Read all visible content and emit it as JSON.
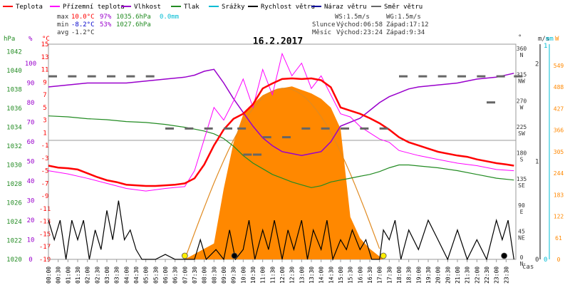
{
  "chart_data": {
    "type": "line",
    "title": "16.2.2017",
    "legend": [
      {
        "name": "Teplota",
        "color": "#ff0000"
      },
      {
        "name": "Přízemní teplota",
        "color": "#ff00ff"
      },
      {
        "name": "Vlhkost",
        "color": "#9900cc"
      },
      {
        "name": "Tlak",
        "color": "#228b22"
      },
      {
        "name": "Srážky",
        "color": "#00bcd4"
      },
      {
        "name": "Rychlost větru",
        "color": "#000000"
      },
      {
        "name": "Náraz větru",
        "color": "#000099"
      },
      {
        "name": "Směr větru",
        "color": "#666666"
      }
    ],
    "stats": {
      "max": {
        "label": "max",
        "temp": "10.0°C",
        "hum": "97%",
        "press": "1035.6hPa",
        "rain": "0.0mm"
      },
      "min": {
        "label": "min",
        "temp": "-8.2°C",
        "hum": "53%",
        "press": "1027.6hPa"
      },
      "avg": {
        "label": "avg",
        "temp": "-1.2°C"
      }
    },
    "wind_info": {
      "ws": "WS:1.5m/s",
      "wg": "WG:1.5m/s"
    },
    "sun": {
      "label": "Slunce",
      "rise": "Východ:06:58",
      "set": "Západ:17:12"
    },
    "moon": {
      "label": "Měsíc",
      "rise": "Východ:23:24",
      "set": "Západ:9:34"
    },
    "axes": {
      "hpa": {
        "title": "hPa",
        "ticks": [
          "1042",
          "1040",
          "1038",
          "1036",
          "1034",
          "1032",
          "1030",
          "1028",
          "1026",
          "1024",
          "1022",
          "1020"
        ],
        "color": "#228b22"
      },
      "pct": {
        "title": "%",
        "ticks": [
          "100",
          "90",
          "80",
          "70",
          "60",
          "50",
          "40",
          "30",
          "20",
          "10",
          "0"
        ],
        "color": "#9900cc"
      },
      "degc": {
        "title": "°C",
        "ticks": [
          "15",
          "13",
          "11",
          "9",
          "7",
          "5",
          "3",
          "1",
          "-1",
          "-3",
          "-5",
          "-7",
          "-9",
          "-11",
          "-13",
          "-15",
          "-17",
          "-19"
        ],
        "color": "#ff0000"
      },
      "deg": {
        "title": "°",
        "ticks": [
          {
            "v": "360",
            "d": "N"
          },
          {
            "v": "315",
            "d": "NW"
          },
          {
            "v": "270",
            "d": "W"
          },
          {
            "v": "225",
            "d": "SW"
          },
          {
            "v": "180",
            "d": "S"
          },
          {
            "v": "135",
            "d": "SE"
          },
          {
            "v": "90",
            "d": "E"
          },
          {
            "v": "45",
            "d": "NE"
          },
          {
            "v": "0",
            "d": "N"
          }
        ]
      },
      "ms": {
        "title": "m/s",
        "ticks": [
          "2",
          "1",
          "0"
        ]
      },
      "mm": {
        "title": "mm",
        "ticks": [
          "1",
          "0"
        ],
        "color": "#00bcd4"
      },
      "wm2": {
        "title": "W",
        "ticks": [
          "549",
          "488",
          "427",
          "366",
          "305",
          "244",
          "183",
          "122",
          "61",
          "0"
        ],
        "color": "#ff8800"
      },
      "x_label": "čas",
      "x_ticks": [
        "00:00",
        "00:30",
        "01:00",
        "01:30",
        "02:00",
        "02:30",
        "03:00",
        "03:30",
        "04:00",
        "04:30",
        "05:00",
        "05:30",
        "06:00",
        "06:30",
        "07:00",
        "07:30",
        "08:00",
        "08:30",
        "09:00",
        "09:30",
        "10:00",
        "10:30",
        "11:00",
        "11:30",
        "12:00",
        "12:30",
        "13:00",
        "13:30",
        "14:00",
        "14:30",
        "15:00",
        "15:30",
        "16:00",
        "16:30",
        "17:00",
        "17:30",
        "18:00",
        "18:30",
        "19:00",
        "19:30",
        "20:00",
        "20:30",
        "21:00",
        "21:30",
        "22:00",
        "22:30",
        "23:00",
        "23:30"
      ]
    },
    "series_data": {
      "temperature_c": [
        [
          0,
          -4.2
        ],
        [
          0.5,
          -4.5
        ],
        [
          1,
          -4.6
        ],
        [
          1.5,
          -4.8
        ],
        [
          2,
          -5.4
        ],
        [
          2.5,
          -6
        ],
        [
          3,
          -6.5
        ],
        [
          3.5,
          -6.8
        ],
        [
          4,
          -7.2
        ],
        [
          4.5,
          -7.3
        ],
        [
          5,
          -7.4
        ],
        [
          5.5,
          -7.4
        ],
        [
          6,
          -7.3
        ],
        [
          6.5,
          -7.2
        ],
        [
          7,
          -7.0
        ],
        [
          7.5,
          -6.2
        ],
        [
          8,
          -4
        ],
        [
          8.5,
          -1
        ],
        [
          9,
          1.5
        ],
        [
          9.5,
          3.2
        ],
        [
          10,
          4
        ],
        [
          10.5,
          5.5
        ],
        [
          11,
          8
        ],
        [
          11.5,
          8.8
        ],
        [
          12,
          9.5
        ],
        [
          12.5,
          9.6
        ],
        [
          13,
          9.5
        ],
        [
          13.5,
          9.6
        ],
        [
          14,
          9.3
        ],
        [
          14.5,
          8.2
        ],
        [
          15,
          5
        ],
        [
          15.5,
          4.5
        ],
        [
          16,
          4
        ],
        [
          16.5,
          3.3
        ],
        [
          17,
          2.5
        ],
        [
          17.5,
          1.5
        ],
        [
          18,
          0.3
        ],
        [
          18.5,
          -0.5
        ],
        [
          19,
          -1
        ],
        [
          19.5,
          -1.5
        ],
        [
          20,
          -2
        ],
        [
          20.5,
          -2.3
        ],
        [
          21,
          -2.6
        ],
        [
          21.5,
          -2.8
        ],
        [
          22,
          -3.2
        ],
        [
          22.5,
          -3.5
        ],
        [
          23,
          -3.8
        ],
        [
          23.5,
          -4
        ],
        [
          23.9,
          -4.2
        ]
      ],
      "ground_temp_c": [
        [
          0,
          -5
        ],
        [
          1,
          -5.5
        ],
        [
          2,
          -6.2
        ],
        [
          3,
          -7
        ],
        [
          4,
          -7.8
        ],
        [
          5,
          -8.2
        ],
        [
          6,
          -7.8
        ],
        [
          7,
          -7.5
        ],
        [
          7.5,
          -5
        ],
        [
          8,
          0
        ],
        [
          8.5,
          5
        ],
        [
          9,
          3
        ],
        [
          9.5,
          6
        ],
        [
          10,
          9.5
        ],
        [
          10.5,
          5
        ],
        [
          11,
          11
        ],
        [
          11.5,
          7
        ],
        [
          12,
          13.5
        ],
        [
          12.5,
          10
        ],
        [
          13,
          12
        ],
        [
          13.5,
          8
        ],
        [
          14,
          10
        ],
        [
          14.5,
          7
        ],
        [
          15,
          4
        ],
        [
          15.5,
          3.5
        ],
        [
          16,
          2
        ],
        [
          16.5,
          1
        ],
        [
          17,
          0
        ],
        [
          17.5,
          -0.5
        ],
        [
          18,
          -1.8
        ],
        [
          18.5,
          -2.2
        ],
        [
          19,
          -2.6
        ],
        [
          20,
          -3.2
        ],
        [
          21,
          -3.8
        ],
        [
          22,
          -4.2
        ],
        [
          23,
          -4.8
        ],
        [
          23.9,
          -5
        ]
      ],
      "humidity_pct": [
        [
          0,
          88
        ],
        [
          1,
          89
        ],
        [
          2,
          90
        ],
        [
          3,
          90
        ],
        [
          4,
          90
        ],
        [
          5,
          91
        ],
        [
          6,
          92
        ],
        [
          7,
          93
        ],
        [
          7.5,
          94
        ],
        [
          8,
          96
        ],
        [
          8.5,
          97
        ],
        [
          9,
          90
        ],
        [
          9.5,
          82
        ],
        [
          10,
          75
        ],
        [
          10.5,
          68
        ],
        [
          11,
          62
        ],
        [
          11.5,
          58
        ],
        [
          12,
          55
        ],
        [
          12.5,
          54
        ],
        [
          13,
          53
        ],
        [
          13.5,
          54
        ],
        [
          14,
          55
        ],
        [
          14.5,
          60
        ],
        [
          15,
          68
        ],
        [
          16,
          72
        ],
        [
          16.5,
          76
        ],
        [
          17,
          80
        ],
        [
          17.5,
          83
        ],
        [
          18,
          85
        ],
        [
          18.5,
          87
        ],
        [
          19,
          88
        ],
        [
          20,
          89
        ],
        [
          21,
          90
        ],
        [
          22,
          92
        ],
        [
          23,
          93
        ],
        [
          23.9,
          95
        ]
      ],
      "pressure_hpa": [
        [
          0,
          1035.2
        ],
        [
          1,
          1035.1
        ],
        [
          2,
          1034.9
        ],
        [
          3,
          1034.8
        ],
        [
          4,
          1034.6
        ],
        [
          5,
          1034.5
        ],
        [
          6,
          1034.3
        ],
        [
          7,
          1034.0
        ],
        [
          7.5,
          1033.8
        ],
        [
          8,
          1033.6
        ],
        [
          8.5,
          1033.3
        ],
        [
          9,
          1032.8
        ],
        [
          9.5,
          1032.0
        ],
        [
          10,
          1031.0
        ],
        [
          10.5,
          1030.2
        ],
        [
          11,
          1029.6
        ],
        [
          11.5,
          1029.0
        ],
        [
          12,
          1028.6
        ],
        [
          12.5,
          1028.2
        ],
        [
          13,
          1027.9
        ],
        [
          13.5,
          1027.6
        ],
        [
          14,
          1027.8
        ],
        [
          14.5,
          1028.2
        ],
        [
          15,
          1028.4
        ],
        [
          15.5,
          1028.6
        ],
        [
          16,
          1028.8
        ],
        [
          16.5,
          1029.0
        ],
        [
          17,
          1029.3
        ],
        [
          17.5,
          1029.7
        ],
        [
          18,
          1030.0
        ],
        [
          18.5,
          1030.0
        ],
        [
          19,
          1029.9
        ],
        [
          20,
          1029.7
        ],
        [
          21,
          1029.4
        ],
        [
          22,
          1029.0
        ],
        [
          23,
          1028.6
        ],
        [
          23.9,
          1028.4
        ]
      ],
      "solar_wm2": [
        [
          7,
          0
        ],
        [
          7.5,
          15
        ],
        [
          8,
          30
        ],
        [
          8.5,
          45
        ],
        [
          9,
          200
        ],
        [
          9.5,
          330
        ],
        [
          10,
          410
        ],
        [
          10.5,
          440
        ],
        [
          11,
          465
        ],
        [
          11.5,
          478
        ],
        [
          12,
          485
        ],
        [
          12.5,
          490
        ],
        [
          13,
          480
        ],
        [
          13.5,
          470
        ],
        [
          14,
          455
        ],
        [
          14.5,
          430
        ],
        [
          15,
          370
        ],
        [
          15.5,
          120
        ],
        [
          16,
          60
        ],
        [
          16.5,
          30
        ],
        [
          17,
          8
        ],
        [
          17.2,
          0
        ]
      ],
      "wind_speed_ms": [
        [
          0,
          0.4
        ],
        [
          0.3,
          0.2
        ],
        [
          0.6,
          0.4
        ],
        [
          0.9,
          0.0
        ],
        [
          1.2,
          0.4
        ],
        [
          1.5,
          0.2
        ],
        [
          1.8,
          0.4
        ],
        [
          2.1,
          0.0
        ],
        [
          2.4,
          0.3
        ],
        [
          2.7,
          0.1
        ],
        [
          3,
          0.5
        ],
        [
          3.3,
          0.2
        ],
        [
          3.6,
          0.6
        ],
        [
          3.9,
          0.2
        ],
        [
          4.2,
          0.3
        ],
        [
          4.5,
          0.1
        ],
        [
          4.8,
          0.0
        ],
        [
          5.5,
          0.0
        ],
        [
          6,
          0.05
        ],
        [
          6.5,
          0.0
        ],
        [
          7,
          0.0
        ],
        [
          7.5,
          0.0
        ],
        [
          7.8,
          0.2
        ],
        [
          8.1,
          0.0
        ],
        [
          8.6,
          0.1
        ],
        [
          9,
          0.0
        ],
        [
          9.3,
          0.3
        ],
        [
          9.6,
          0.0
        ],
        [
          10,
          0.1
        ],
        [
          10.3,
          0.4
        ],
        [
          10.6,
          0.0
        ],
        [
          11,
          0.3
        ],
        [
          11.3,
          0.1
        ],
        [
          11.6,
          0.4
        ],
        [
          12,
          0.0
        ],
        [
          12.3,
          0.3
        ],
        [
          12.6,
          0.1
        ],
        [
          13,
          0.4
        ],
        [
          13.3,
          0.0
        ],
        [
          13.6,
          0.3
        ],
        [
          14,
          0.1
        ],
        [
          14.3,
          0.4
        ],
        [
          14.6,
          0.0
        ],
        [
          15,
          0.2
        ],
        [
          15.3,
          0.1
        ],
        [
          15.6,
          0.3
        ],
        [
          16,
          0.1
        ],
        [
          16.3,
          0.2
        ],
        [
          16.6,
          0.0
        ],
        [
          17,
          0.0
        ],
        [
          17.2,
          0.3
        ],
        [
          17.5,
          0.2
        ],
        [
          17.8,
          0.4
        ],
        [
          18.1,
          0.0
        ],
        [
          18.5,
          0.3
        ],
        [
          19,
          0.1
        ],
        [
          19.5,
          0.4
        ],
        [
          20,
          0.2
        ],
        [
          20.5,
          0.0
        ],
        [
          21,
          0.3
        ],
        [
          21.5,
          0.0
        ],
        [
          22,
          0.2
        ],
        [
          22.5,
          0.0
        ],
        [
          23,
          0.4
        ],
        [
          23.3,
          0.2
        ],
        [
          23.6,
          0.4
        ],
        [
          23.9,
          0.0
        ]
      ],
      "wind_dir_deg": [
        [
          0,
          315
        ],
        [
          1,
          315
        ],
        [
          2,
          315
        ],
        [
          3,
          315
        ],
        [
          4,
          315
        ],
        [
          5,
          315
        ],
        [
          6,
          225
        ],
        [
          7,
          225
        ],
        [
          8,
          225
        ],
        [
          9,
          225
        ],
        [
          9.7,
          225
        ],
        [
          10,
          180
        ],
        [
          10.5,
          180
        ],
        [
          11,
          210
        ],
        [
          12,
          210
        ],
        [
          13,
          225
        ],
        [
          14,
          225
        ],
        [
          15,
          225
        ],
        [
          16,
          225
        ],
        [
          17,
          225
        ],
        [
          18,
          315
        ],
        [
          19,
          315
        ],
        [
          20,
          315
        ],
        [
          21,
          315
        ],
        [
          22,
          315
        ],
        [
          22.5,
          270
        ],
        [
          23,
          315
        ],
        [
          23.9,
          315
        ]
      ]
    }
  }
}
